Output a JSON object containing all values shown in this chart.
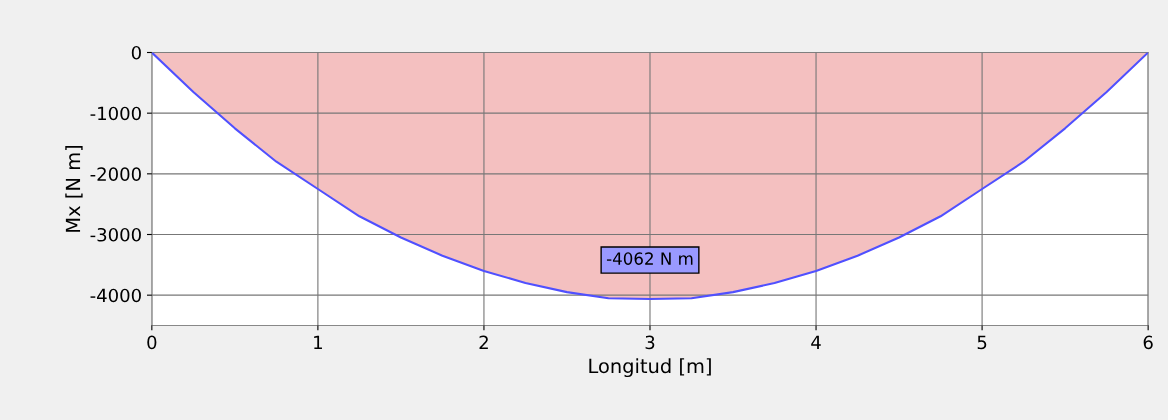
{
  "chart_data": {
    "type": "area",
    "xlabel": "Longitud [m]",
    "ylabel": "Mx [N m]",
    "x": [
      0,
      0.25,
      0.5,
      0.75,
      1,
      1.25,
      1.5,
      1.75,
      2,
      2.25,
      2.5,
      2.75,
      3,
      3.25,
      3.5,
      3.75,
      4,
      4.25,
      4.5,
      4.75,
      5,
      5.25,
      5.5,
      5.75,
      6
    ],
    "series": [
      {
        "color": "#f4c0c0",
        "values": [
          0,
          -650,
          -1250,
          -1800,
          -2250,
          -2700,
          -3050,
          -3350,
          -3600,
          -3800,
          -3950,
          -4050,
          -4062,
          -4050,
          -3950,
          -3800,
          -3600,
          -3350,
          -3050,
          -2700,
          -2250,
          -1800,
          -1250,
          -650,
          0
        ]
      }
    ],
    "xlim": [
      0,
      6
    ],
    "xticks": [
      0,
      1,
      2,
      3,
      4,
      5,
      6
    ],
    "ylim": [
      -4500,
      0
    ],
    "yticks": [
      -4000,
      -3000,
      -2000,
      -1000,
      0
    ],
    "grid": true,
    "annotations": [
      {
        "text": "-4062 N m",
        "x": 3,
        "y": -4062
      }
    ]
  }
}
